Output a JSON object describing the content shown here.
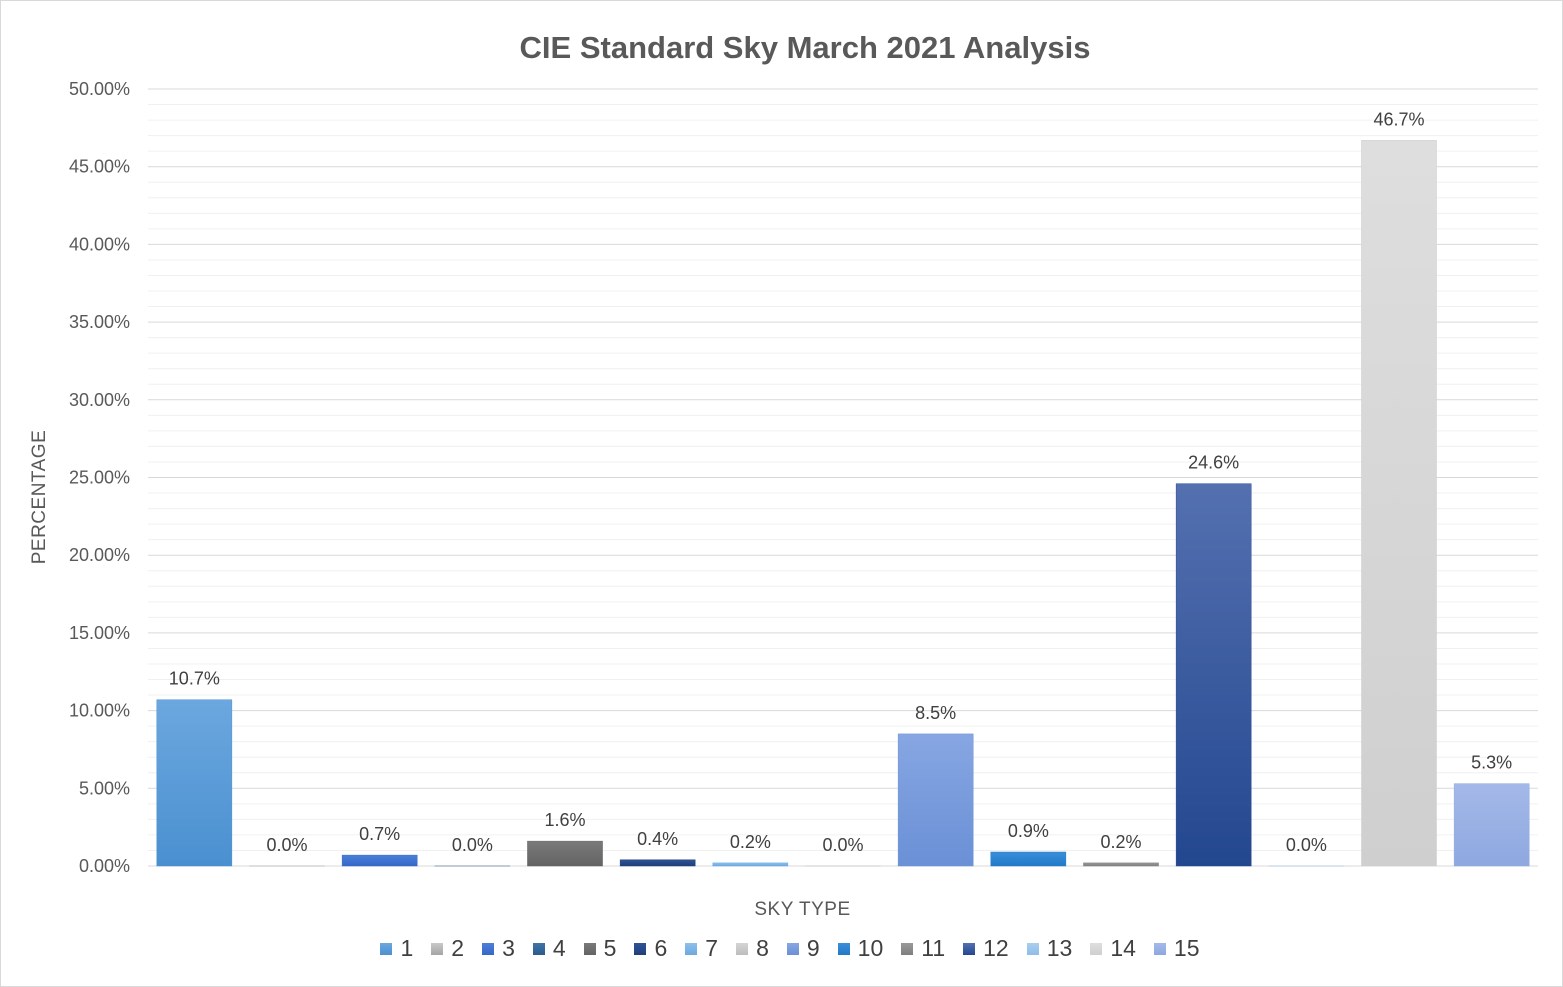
{
  "chart_data": {
    "type": "bar",
    "title": "CIE Standard Sky March 2021 Analysis",
    "xlabel": "SKY TYPE",
    "ylabel": "PERCENTAGE",
    "categories": [
      "1",
      "2",
      "3",
      "4",
      "5",
      "6",
      "7",
      "8",
      "9",
      "10",
      "11",
      "12",
      "13",
      "14",
      "15"
    ],
    "values": [
      10.7,
      0.0,
      0.7,
      0.0,
      1.6,
      0.4,
      0.2,
      0.0,
      8.5,
      0.9,
      0.2,
      24.6,
      0.0,
      46.7,
      5.3
    ],
    "data_labels": [
      "10.7%",
      "0.0%",
      "0.7%",
      "0.0%",
      "1.6%",
      "0.4%",
      "0.2%",
      "0.0%",
      "8.5%",
      "0.9%",
      "0.2%",
      "24.6%",
      "0.0%",
      "46.7%",
      "5.3%"
    ],
    "ylim": [
      0,
      50
    ],
    "yticks": [
      0,
      5,
      10,
      15,
      20,
      25,
      30,
      35,
      40,
      45,
      50
    ],
    "ytick_labels": [
      "0.00%",
      "5.00%",
      "10.00%",
      "15.00%",
      "20.00%",
      "25.00%",
      "30.00%",
      "35.00%",
      "40.00%",
      "45.00%",
      "50.00%"
    ],
    "grid": true,
    "legend_position": "bottom",
    "colors": [
      "#4a90d0",
      "#a5a5a5",
      "#3468c8",
      "#2a5c8c",
      "#636363",
      "#203f7a",
      "#6aa9e0",
      "#bdbdbd",
      "#6a90d6",
      "#2079c8",
      "#7f7f7f",
      "#23478f",
      "#8fbde8",
      "#cfcfcf",
      "#8ea8e0"
    ],
    "colors_light": [
      "#6ca7df",
      "#c8c8c8",
      "#4c7fd8",
      "#3f74a8",
      "#7a7a7a",
      "#2f5396",
      "#8ec0ea",
      "#d5d5d5",
      "#87a6e2",
      "#3b8fd8",
      "#999999",
      "#5470b0",
      "#a9ceef",
      "#dedede",
      "#a4b9e8"
    ]
  }
}
